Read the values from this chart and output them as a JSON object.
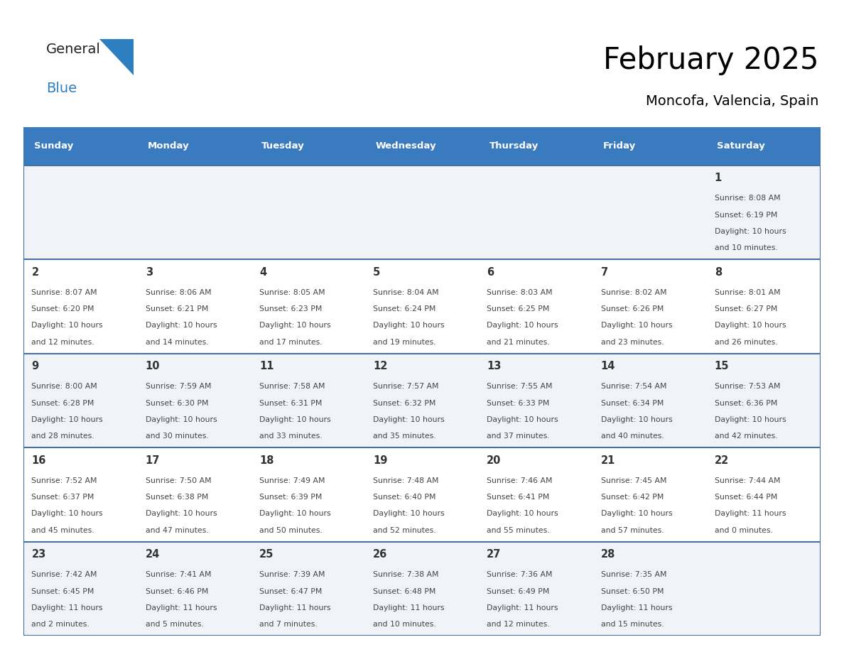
{
  "title": "February 2025",
  "subtitle": "Moncofa, Valencia, Spain",
  "header_bg": "#3a7bbf",
  "header_text_color": "#ffffff",
  "cell_bg_odd": "#f0f4f8",
  "cell_bg_even": "#ffffff",
  "border_color": "#4472a8",
  "text_color": "#444444",
  "day_number_color": "#333333",
  "weekdays": [
    "Sunday",
    "Monday",
    "Tuesday",
    "Wednesday",
    "Thursday",
    "Friday",
    "Saturday"
  ],
  "logo_general_color": "#222222",
  "logo_blue_color": "#2e7fc0",
  "days": [
    {
      "date": 1,
      "row": 0,
      "col": 6,
      "sunrise": "8:08 AM",
      "sunset": "6:19 PM",
      "daylight_hours": 10,
      "daylight_minutes": 10
    },
    {
      "date": 2,
      "row": 1,
      "col": 0,
      "sunrise": "8:07 AM",
      "sunset": "6:20 PM",
      "daylight_hours": 10,
      "daylight_minutes": 12
    },
    {
      "date": 3,
      "row": 1,
      "col": 1,
      "sunrise": "8:06 AM",
      "sunset": "6:21 PM",
      "daylight_hours": 10,
      "daylight_minutes": 14
    },
    {
      "date": 4,
      "row": 1,
      "col": 2,
      "sunrise": "8:05 AM",
      "sunset": "6:23 PM",
      "daylight_hours": 10,
      "daylight_minutes": 17
    },
    {
      "date": 5,
      "row": 1,
      "col": 3,
      "sunrise": "8:04 AM",
      "sunset": "6:24 PM",
      "daylight_hours": 10,
      "daylight_minutes": 19
    },
    {
      "date": 6,
      "row": 1,
      "col": 4,
      "sunrise": "8:03 AM",
      "sunset": "6:25 PM",
      "daylight_hours": 10,
      "daylight_minutes": 21
    },
    {
      "date": 7,
      "row": 1,
      "col": 5,
      "sunrise": "8:02 AM",
      "sunset": "6:26 PM",
      "daylight_hours": 10,
      "daylight_minutes": 23
    },
    {
      "date": 8,
      "row": 1,
      "col": 6,
      "sunrise": "8:01 AM",
      "sunset": "6:27 PM",
      "daylight_hours": 10,
      "daylight_minutes": 26
    },
    {
      "date": 9,
      "row": 2,
      "col": 0,
      "sunrise": "8:00 AM",
      "sunset": "6:28 PM",
      "daylight_hours": 10,
      "daylight_minutes": 28
    },
    {
      "date": 10,
      "row": 2,
      "col": 1,
      "sunrise": "7:59 AM",
      "sunset": "6:30 PM",
      "daylight_hours": 10,
      "daylight_minutes": 30
    },
    {
      "date": 11,
      "row": 2,
      "col": 2,
      "sunrise": "7:58 AM",
      "sunset": "6:31 PM",
      "daylight_hours": 10,
      "daylight_minutes": 33
    },
    {
      "date": 12,
      "row": 2,
      "col": 3,
      "sunrise": "7:57 AM",
      "sunset": "6:32 PM",
      "daylight_hours": 10,
      "daylight_minutes": 35
    },
    {
      "date": 13,
      "row": 2,
      "col": 4,
      "sunrise": "7:55 AM",
      "sunset": "6:33 PM",
      "daylight_hours": 10,
      "daylight_minutes": 37
    },
    {
      "date": 14,
      "row": 2,
      "col": 5,
      "sunrise": "7:54 AM",
      "sunset": "6:34 PM",
      "daylight_hours": 10,
      "daylight_minutes": 40
    },
    {
      "date": 15,
      "row": 2,
      "col": 6,
      "sunrise": "7:53 AM",
      "sunset": "6:36 PM",
      "daylight_hours": 10,
      "daylight_minutes": 42
    },
    {
      "date": 16,
      "row": 3,
      "col": 0,
      "sunrise": "7:52 AM",
      "sunset": "6:37 PM",
      "daylight_hours": 10,
      "daylight_minutes": 45
    },
    {
      "date": 17,
      "row": 3,
      "col": 1,
      "sunrise": "7:50 AM",
      "sunset": "6:38 PM",
      "daylight_hours": 10,
      "daylight_minutes": 47
    },
    {
      "date": 18,
      "row": 3,
      "col": 2,
      "sunrise": "7:49 AM",
      "sunset": "6:39 PM",
      "daylight_hours": 10,
      "daylight_minutes": 50
    },
    {
      "date": 19,
      "row": 3,
      "col": 3,
      "sunrise": "7:48 AM",
      "sunset": "6:40 PM",
      "daylight_hours": 10,
      "daylight_minutes": 52
    },
    {
      "date": 20,
      "row": 3,
      "col": 4,
      "sunrise": "7:46 AM",
      "sunset": "6:41 PM",
      "daylight_hours": 10,
      "daylight_minutes": 55
    },
    {
      "date": 21,
      "row": 3,
      "col": 5,
      "sunrise": "7:45 AM",
      "sunset": "6:42 PM",
      "daylight_hours": 10,
      "daylight_minutes": 57
    },
    {
      "date": 22,
      "row": 3,
      "col": 6,
      "sunrise": "7:44 AM",
      "sunset": "6:44 PM",
      "daylight_hours": 11,
      "daylight_minutes": 0
    },
    {
      "date": 23,
      "row": 4,
      "col": 0,
      "sunrise": "7:42 AM",
      "sunset": "6:45 PM",
      "daylight_hours": 11,
      "daylight_minutes": 2
    },
    {
      "date": 24,
      "row": 4,
      "col": 1,
      "sunrise": "7:41 AM",
      "sunset": "6:46 PM",
      "daylight_hours": 11,
      "daylight_minutes": 5
    },
    {
      "date": 25,
      "row": 4,
      "col": 2,
      "sunrise": "7:39 AM",
      "sunset": "6:47 PM",
      "daylight_hours": 11,
      "daylight_minutes": 7
    },
    {
      "date": 26,
      "row": 4,
      "col": 3,
      "sunrise": "7:38 AM",
      "sunset": "6:48 PM",
      "daylight_hours": 11,
      "daylight_minutes": 10
    },
    {
      "date": 27,
      "row": 4,
      "col": 4,
      "sunrise": "7:36 AM",
      "sunset": "6:49 PM",
      "daylight_hours": 11,
      "daylight_minutes": 12
    },
    {
      "date": 28,
      "row": 4,
      "col": 5,
      "sunrise": "7:35 AM",
      "sunset": "6:50 PM",
      "daylight_hours": 11,
      "daylight_minutes": 15
    }
  ]
}
